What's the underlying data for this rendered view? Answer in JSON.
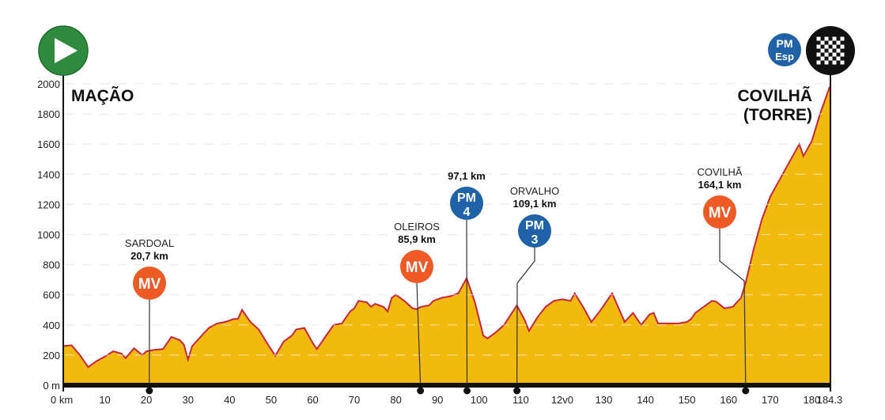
{
  "chart_data": {
    "type": "area",
    "title": "",
    "xlabel": "",
    "ylabel": "",
    "xlim": [
      0,
      184.3
    ],
    "ylim": [
      0,
      2000
    ],
    "grid": true,
    "x_ticks": [
      {
        "v": 0,
        "label": "0 km"
      },
      {
        "v": 10,
        "label": "10"
      },
      {
        "v": 20,
        "label": "20"
      },
      {
        "v": 30,
        "label": "30"
      },
      {
        "v": 40,
        "label": "40"
      },
      {
        "v": 50,
        "label": "50"
      },
      {
        "v": 60,
        "label": "60"
      },
      {
        "v": 70,
        "label": "70"
      },
      {
        "v": 80,
        "label": "80"
      },
      {
        "v": 90,
        "label": "90"
      },
      {
        "v": 100,
        "label": "100"
      },
      {
        "v": 110,
        "label": "110"
      },
      {
        "v": 120,
        "label": "12v0"
      },
      {
        "v": 130,
        "label": "130"
      },
      {
        "v": 140,
        "label": "140"
      },
      {
        "v": 150,
        "label": "150"
      },
      {
        "v": 160,
        "label": "160"
      },
      {
        "v": 170,
        "label": "170"
      },
      {
        "v": 180,
        "label": "180"
      },
      {
        "v": 184.3,
        "label": "184.3"
      }
    ],
    "y_ticks": [
      {
        "v": 0,
        "label": "0 m"
      },
      {
        "v": 200,
        "label": "200"
      },
      {
        "v": 400,
        "label": "400"
      },
      {
        "v": 600,
        "label": "600"
      },
      {
        "v": 800,
        "label": "800"
      },
      {
        "v": 1000,
        "label": "1000"
      },
      {
        "v": 1200,
        "label": "1200"
      },
      {
        "v": 1400,
        "label": "1400"
      },
      {
        "v": 1600,
        "label": "1600"
      },
      {
        "v": 1800,
        "label": "1800"
      },
      {
        "v": 2000,
        "label": "2000"
      }
    ],
    "profile": [
      [
        0,
        260
      ],
      [
        2,
        265
      ],
      [
        4,
        200
      ],
      [
        6,
        120
      ],
      [
        8,
        160
      ],
      [
        10,
        190
      ],
      [
        12,
        225
      ],
      [
        14,
        210
      ],
      [
        15,
        180
      ],
      [
        17,
        245
      ],
      [
        19,
        200
      ],
      [
        20,
        225
      ],
      [
        22,
        235
      ],
      [
        24,
        240
      ],
      [
        26,
        320
      ],
      [
        28,
        300
      ],
      [
        29,
        270
      ],
      [
        30,
        170
      ],
      [
        31,
        260
      ],
      [
        33,
        320
      ],
      [
        35,
        380
      ],
      [
        37,
        410
      ],
      [
        39,
        420
      ],
      [
        41,
        440
      ],
      [
        42,
        440
      ],
      [
        43,
        500
      ],
      [
        44,
        460
      ],
      [
        45,
        420
      ],
      [
        47,
        370
      ],
      [
        49,
        280
      ],
      [
        51,
        195
      ],
      [
        53,
        290
      ],
      [
        55,
        330
      ],
      [
        56,
        370
      ],
      [
        58,
        380
      ],
      [
        60,
        280
      ],
      [
        61,
        240
      ],
      [
        63,
        320
      ],
      [
        65,
        400
      ],
      [
        67,
        410
      ],
      [
        69,
        490
      ],
      [
        70,
        510
      ],
      [
        71,
        560
      ],
      [
        73,
        550
      ],
      [
        74,
        520
      ],
      [
        75,
        540
      ],
      [
        77,
        520
      ],
      [
        78,
        490
      ],
      [
        79,
        580
      ],
      [
        80,
        600
      ],
      [
        82,
        560
      ],
      [
        84,
        510
      ],
      [
        85,
        505
      ],
      [
        86,
        520
      ],
      [
        88,
        530
      ],
      [
        89,
        560
      ],
      [
        91,
        580
      ],
      [
        93,
        590
      ],
      [
        95,
        610
      ],
      [
        97,
        710
      ],
      [
        99,
        550
      ],
      [
        101,
        330
      ],
      [
        102,
        310
      ],
      [
        104,
        350
      ],
      [
        106,
        400
      ],
      [
        109.1,
        530
      ],
      [
        111,
        430
      ],
      [
        112,
        360
      ],
      [
        114,
        450
      ],
      [
        116,
        520
      ],
      [
        118,
        560
      ],
      [
        120,
        570
      ],
      [
        122,
        560
      ],
      [
        123,
        610
      ],
      [
        125,
        520
      ],
      [
        127,
        420
      ],
      [
        129,
        490
      ],
      [
        132,
        610
      ],
      [
        135,
        420
      ],
      [
        137,
        480
      ],
      [
        139,
        400
      ],
      [
        141,
        470
      ],
      [
        142,
        480
      ],
      [
        143,
        410
      ],
      [
        146,
        410
      ],
      [
        148,
        410
      ],
      [
        150,
        420
      ],
      [
        151,
        440
      ],
      [
        152,
        480
      ],
      [
        154,
        520
      ],
      [
        156,
        560
      ],
      [
        157,
        555
      ],
      [
        159,
        510
      ],
      [
        161,
        520
      ],
      [
        163,
        580
      ],
      [
        164.1,
        680
      ],
      [
        166,
        900
      ],
      [
        168,
        1100
      ],
      [
        170,
        1250
      ],
      [
        172,
        1350
      ],
      [
        174,
        1450
      ],
      [
        176,
        1550
      ],
      [
        177,
        1600
      ],
      [
        178,
        1520
      ],
      [
        180,
        1620
      ],
      [
        182,
        1800
      ],
      [
        184.3,
        1980
      ]
    ],
    "start": {
      "name": "MAÇÃO",
      "km": 0
    },
    "finish": {
      "name_line1": "COVILHÃ",
      "name_line2": "(TORRE)",
      "km": 184.3,
      "badge_line1": "PM",
      "badge_line2": "Esp"
    },
    "points": [
      {
        "km": 20.7,
        "place": "SARDOAL",
        "km_label": "20,7 km",
        "type": "MV",
        "line1": "MV",
        "line2": ""
      },
      {
        "km": 85.9,
        "place": "OLEIROS",
        "km_label": "85,9 km",
        "type": "MV",
        "line1": "MV",
        "line2": ""
      },
      {
        "km": 97.1,
        "place": "",
        "km_label": "97,1 km",
        "type": "PM",
        "line1": "PM",
        "line2": "4"
      },
      {
        "km": 109.1,
        "place": "ORVALHO",
        "km_label": "109,1 km",
        "type": "PM",
        "line1": "PM",
        "line2": "3"
      },
      {
        "km": 164.1,
        "place": "COVILHÃ",
        "km_label": "164,1 km",
        "type": "MV",
        "line1": "MV",
        "line2": ""
      }
    ],
    "colors": {
      "fill": "#f2b90f",
      "line": "#c8243c",
      "mv": "#ee5a24",
      "pm": "#1f62a8",
      "start": "#2e8b3e",
      "finish": "#111111"
    }
  }
}
